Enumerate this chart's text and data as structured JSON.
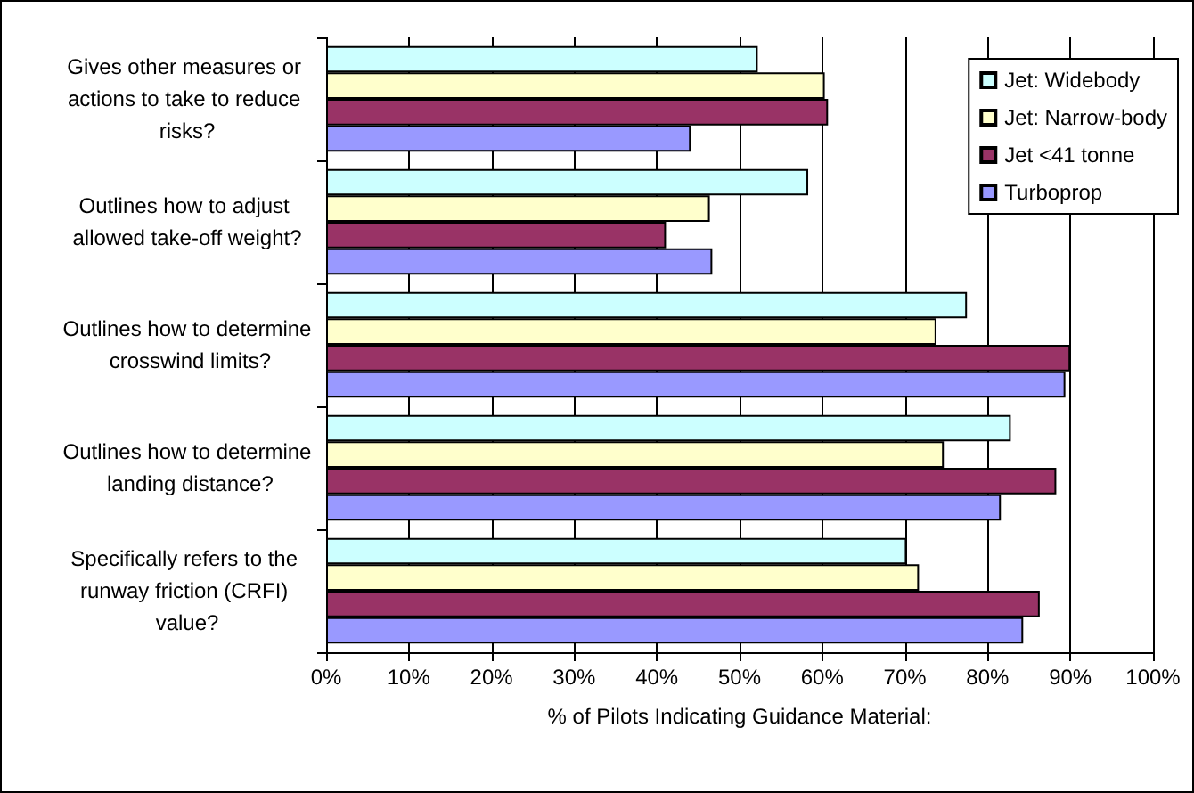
{
  "chart_data": {
    "type": "bar",
    "orientation": "horizontal",
    "categories": [
      "Gives other measures or actions to take to reduce risks?",
      "Outlines how to adjust allowed take-off weight?",
      "Outlines how to determine crosswind limits?",
      "Outlines how to determine landing distance?",
      "Specifically refers to the runway friction (CRFI) value?"
    ],
    "series": [
      {
        "name": "Jet: Widebody",
        "color": "#ccffff",
        "values": [
          52.2,
          58.3,
          77.5,
          82.8,
          70.2
        ]
      },
      {
        "name": "Jet: Narrow-body",
        "color": "#ffffcc",
        "values": [
          60.3,
          46.4,
          73.8,
          74.7,
          71.7
        ]
      },
      {
        "name": "Jet <41 tonne",
        "color": "#993366",
        "values": [
          60.7,
          41.1,
          90.0,
          88.3,
          86.3
        ]
      },
      {
        "name": "Turboprop",
        "color": "#9999ff",
        "values": [
          44.1,
          46.7,
          89.4,
          81.6,
          84.3
        ]
      }
    ],
    "xlabel": "% of Pilots Indicating Guidance Material:",
    "xlim": [
      0,
      100
    ],
    "xticks": [
      {
        "value": 0,
        "label": "0%"
      },
      {
        "value": 10,
        "label": "10%"
      },
      {
        "value": 20,
        "label": "20%"
      },
      {
        "value": 30,
        "label": "30%"
      },
      {
        "value": 40,
        "label": "40%"
      },
      {
        "value": 50,
        "label": "50%"
      },
      {
        "value": 60,
        "label": "60%"
      },
      {
        "value": 70,
        "label": "70%"
      },
      {
        "value": 80,
        "label": "80%"
      },
      {
        "value": 90,
        "label": "90%"
      },
      {
        "value": 100,
        "label": "100%"
      }
    ],
    "grid": "x",
    "legend": "top right"
  }
}
